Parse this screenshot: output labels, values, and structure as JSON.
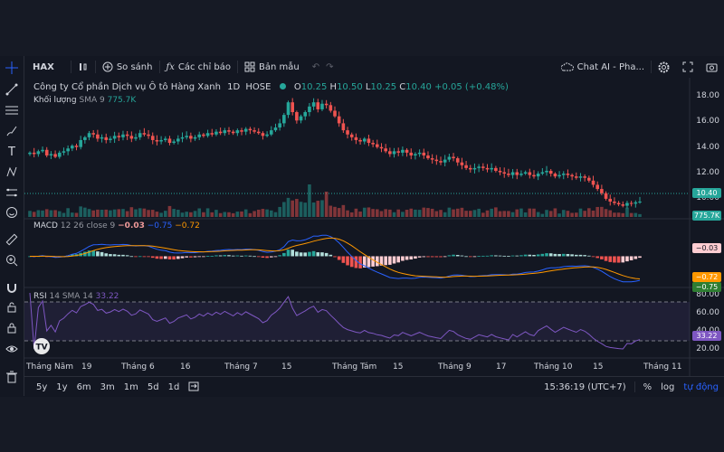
{
  "toolbar": {
    "symbol": "HAX",
    "compare_label": "So sánh",
    "indicators_label": "Các chỉ báo",
    "templates_label": "Bản mẫu",
    "chat_label": "Chat AI - Pha..."
  },
  "legend": {
    "company": "Công ty Cổ phần Dịch vụ Ô tô Hàng Xanh",
    "interval": "1D",
    "exchange": "HOSE",
    "open_label": "O",
    "open": "10.25",
    "high_label": "H",
    "high": "10.50",
    "low_label": "L",
    "low": "10.25",
    "close_label": "C",
    "close": "10.40",
    "change": "+0.05 (+0.48%)",
    "volume_label": "Khối lượng",
    "volume_sma": "SMA 9",
    "volume_value": "775.7K",
    "macd_label": "MACD",
    "macd_params": "12 26 close 9",
    "macd_hist": "−0.03",
    "macd_line": "−0.75",
    "macd_signal": "−0.72",
    "rsi_label": "RSI",
    "rsi_params": "14 SMA 14",
    "rsi_value": "33.22"
  },
  "price_axis": {
    "labels": [
      "18.00",
      "16.00",
      "14.00",
      "12.00",
      "10.00"
    ],
    "last_price": "10.40",
    "volume_tag": "775.7K"
  },
  "macd_axis": {
    "hist_tag": "−0.03",
    "signal_tag": "−0.72",
    "macd_tag": "−0.75"
  },
  "rsi_axis": {
    "labels": [
      "80.00",
      "60.00",
      "40.00",
      "20.00"
    ],
    "value_tag": "33.22"
  },
  "time_axis": {
    "labels": [
      "Tháng Năm",
      "19",
      "Tháng 6",
      "16",
      "Tháng 7",
      "15",
      "Tháng Tám",
      "15",
      "Tháng 9",
      "17",
      "Tháng 10",
      "15",
      "Tháng 11"
    ]
  },
  "bottombar": {
    "ranges": [
      "5y",
      "1y",
      "6m",
      "3m",
      "1m",
      "5d",
      "1d"
    ],
    "time": "15:36:19 (UTC+7)",
    "percent": "%",
    "log": "log",
    "auto": "tự động"
  },
  "colors": {
    "up": "#26a69a",
    "down": "#ef5350",
    "macd": "#2962ff",
    "signal": "#ff9800",
    "rsi": "#7e57c2",
    "accent": "#2962ff"
  },
  "chart_data": {
    "type": "candlestick",
    "y_range": [
      9.3,
      19.0
    ],
    "closes": [
      13.9,
      13.8,
      14.0,
      14.1,
      13.7,
      13.8,
      13.6,
      13.9,
      14.0,
      14.2,
      14.4,
      14.3,
      14.8,
      15.0,
      15.3,
      15.2,
      14.9,
      15.0,
      14.8,
      14.9,
      15.1,
      15.0,
      15.2,
      15.1,
      14.9,
      15.0,
      15.3,
      15.2,
      15.1,
      14.8,
      14.7,
      14.8,
      14.9,
      14.6,
      14.7,
      14.9,
      15.0,
      15.1,
      14.9,
      15.0,
      15.2,
      15.1,
      15.3,
      15.2,
      15.4,
      15.3,
      15.5,
      15.4,
      15.3,
      15.5,
      15.4,
      15.6,
      15.5,
      15.4,
      15.3,
      15.1,
      15.2,
      15.5,
      15.7,
      16.0,
      16.6,
      17.5,
      16.8,
      16.2,
      16.5,
      16.8,
      17.2,
      17.5,
      17.0,
      17.4,
      17.3,
      16.9,
      16.5,
      16.0,
      15.5,
      15.2,
      15.0,
      14.8,
      14.7,
      14.9,
      14.6,
      14.5,
      14.3,
      14.2,
      14.0,
      13.8,
      14.0,
      13.9,
      14.1,
      13.9,
      13.7,
      13.8,
      13.9,
      13.7,
      13.5,
      13.4,
      13.3,
      13.2,
      13.4,
      13.6,
      13.5,
      13.2,
      13.0,
      12.8,
      12.7,
      12.8,
      12.9,
      12.8,
      12.7,
      12.8,
      12.6,
      12.5,
      12.4,
      12.3,
      12.5,
      12.3,
      12.4,
      12.5,
      12.3,
      12.2,
      12.4,
      12.5,
      12.6,
      12.4,
      12.2,
      12.3,
      12.4,
      12.3,
      12.2,
      12.1,
      12.2,
      12.1,
      11.9,
      11.6,
      11.3,
      11.0,
      10.6,
      10.4,
      10.3,
      10.2,
      10.1,
      10.3,
      10.25,
      10.35,
      10.4
    ]
  }
}
